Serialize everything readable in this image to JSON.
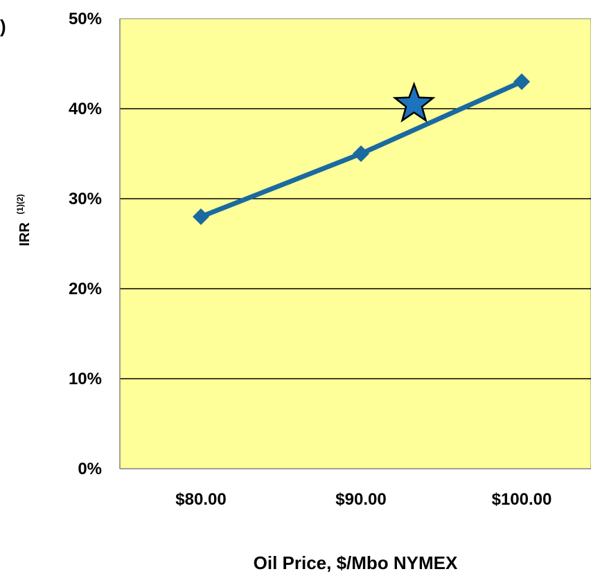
{
  "colors": {
    "plot_background": "#ffff99",
    "series_line": "#1a6aa0",
    "marker": "#1a6aa0",
    "highlight_star": "#1e73be",
    "gridline": "#000000"
  },
  "chart_data": {
    "type": "line",
    "title": "",
    "xlabel": "Oil Price, $/Mbo NYMEX",
    "ylabel": "IRR",
    "ylabel_superscript": "(1)(2)",
    "categories": [
      "$80.00",
      "$90.00",
      "$100.00"
    ],
    "ytick_labels": [
      "0%",
      "10%",
      "20%",
      "30%",
      "40%",
      "50%"
    ],
    "ylim": [
      0,
      50
    ],
    "yticks": [
      0,
      10,
      20,
      30,
      40,
      50
    ],
    "grid": true,
    "legend": "none",
    "partial_text_left": ")",
    "series": [
      {
        "x": [
          80,
          90,
          100
        ],
        "values": [
          28,
          35,
          43
        ],
        "marker": "diamond"
      }
    ],
    "highlight_point": {
      "x": 93.3,
      "value": 40.5,
      "marker": "star"
    }
  }
}
